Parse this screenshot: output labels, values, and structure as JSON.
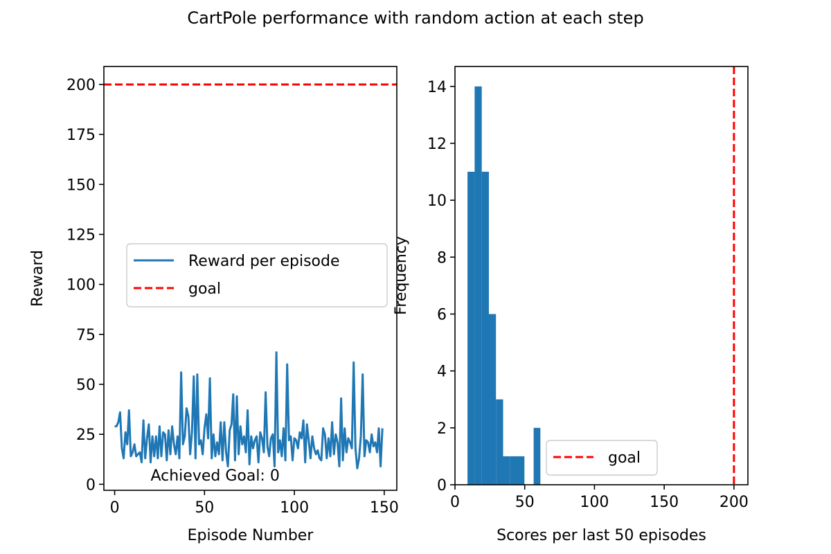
{
  "title": "CartPole performance with random action at each step",
  "chart_data": [
    {
      "type": "line",
      "xlabel": "Episode Number",
      "ylabel": "Reward",
      "xlim": [
        -6,
        157
      ],
      "ylim": [
        -3,
        209
      ],
      "xticks": [
        0,
        50,
        100,
        150
      ],
      "yticks": [
        0,
        25,
        50,
        75,
        100,
        125,
        150,
        175,
        200
      ],
      "legend_position": "center-right",
      "series": [
        {
          "name": "Reward per episode",
          "color": "#1f77b4",
          "style": "solid",
          "x": [
            0,
            1,
            2,
            3,
            4,
            5,
            6,
            7,
            8,
            9,
            10,
            11,
            12,
            13,
            14,
            15,
            16,
            17,
            18,
            19,
            20,
            21,
            22,
            23,
            24,
            25,
            26,
            27,
            28,
            29,
            30,
            31,
            32,
            33,
            34,
            35,
            36,
            37,
            38,
            39,
            40,
            41,
            42,
            43,
            44,
            45,
            46,
            47,
            48,
            49,
            50,
            51,
            52,
            53,
            54,
            55,
            56,
            57,
            58,
            59,
            60,
            61,
            62,
            63,
            64,
            65,
            66,
            67,
            68,
            69,
            70,
            71,
            72,
            73,
            74,
            75,
            76,
            77,
            78,
            79,
            80,
            81,
            82,
            83,
            84,
            85,
            86,
            87,
            88,
            89,
            90,
            91,
            92,
            93,
            94,
            95,
            96,
            97,
            98,
            99,
            100,
            101,
            102,
            103,
            104,
            105,
            106,
            107,
            108,
            109,
            110,
            111,
            112,
            113,
            114,
            115,
            116,
            117,
            118,
            119,
            120,
            121,
            122,
            123,
            124,
            125,
            126,
            127,
            128,
            129,
            130,
            131,
            132,
            133,
            134,
            135,
            136,
            137,
            138,
            139,
            140,
            141,
            142,
            143,
            144,
            145,
            146,
            147,
            148,
            149
          ],
          "values": [
            29,
            29,
            31,
            36,
            18,
            13,
            26,
            20,
            37,
            14,
            16,
            20,
            14,
            15,
            16,
            11,
            32,
            13,
            23,
            30,
            11,
            24,
            14,
            24,
            13,
            29,
            14,
            26,
            25,
            12,
            27,
            15,
            29,
            20,
            15,
            24,
            13,
            56,
            20,
            24,
            38,
            34,
            15,
            26,
            54,
            13,
            55,
            20,
            22,
            15,
            28,
            35,
            23,
            53,
            13,
            25,
            14,
            21,
            15,
            31,
            12,
            31,
            16,
            9,
            27,
            30,
            45,
            12,
            44,
            15,
            29,
            20,
            24,
            16,
            37,
            10,
            24,
            18,
            22,
            24,
            11,
            26,
            23,
            16,
            46,
            19,
            14,
            23,
            25,
            9,
            66,
            16,
            22,
            14,
            28,
            12,
            60,
            22,
            24,
            12,
            23,
            22,
            18,
            26,
            23,
            32,
            11,
            30,
            22,
            13,
            24,
            18,
            15,
            17,
            13,
            12,
            28,
            25,
            13,
            23,
            14,
            31,
            15,
            25,
            21,
            9,
            43,
            12,
            28,
            16,
            23,
            21,
            18,
            61,
            18,
            8,
            13,
            24,
            55,
            14,
            22,
            21,
            16,
            25,
            19,
            21,
            16,
            28,
            9,
            28
          ],
          "note": "approximate values read from the plot"
        },
        {
          "name": "goal",
          "color": "#ff0000",
          "style": "dashed",
          "y": 200
        }
      ],
      "annotation": "Achieved Goal: 0"
    },
    {
      "type": "bar",
      "xlabel": "Scores per last 50 episodes",
      "ylabel": "Frequency",
      "xlim": [
        0,
        210
      ],
      "ylim": [
        0,
        14.7
      ],
      "xticks": [
        0,
        50,
        100,
        150,
        200
      ],
      "yticks": [
        0,
        2,
        4,
        6,
        8,
        10,
        12,
        14
      ],
      "bar_color": "#1f77b4",
      "legend_position": "bottom-center",
      "bins": [
        {
          "start": 9.0,
          "end": 14.1,
          "count": 11
        },
        {
          "start": 14.1,
          "end": 19.2,
          "count": 14
        },
        {
          "start": 19.2,
          "end": 24.3,
          "count": 11
        },
        {
          "start": 24.3,
          "end": 29.4,
          "count": 6
        },
        {
          "start": 29.4,
          "end": 34.5,
          "count": 3
        },
        {
          "start": 34.5,
          "end": 39.6,
          "count": 1
        },
        {
          "start": 39.6,
          "end": 44.7,
          "count": 1
        },
        {
          "start": 44.7,
          "end": 49.8,
          "count": 1
        },
        {
          "start": 56.4,
          "end": 61.2,
          "count": 2
        }
      ],
      "series": [
        {
          "name": "goal",
          "color": "#ff0000",
          "style": "dashed",
          "x": 200
        }
      ]
    }
  ]
}
